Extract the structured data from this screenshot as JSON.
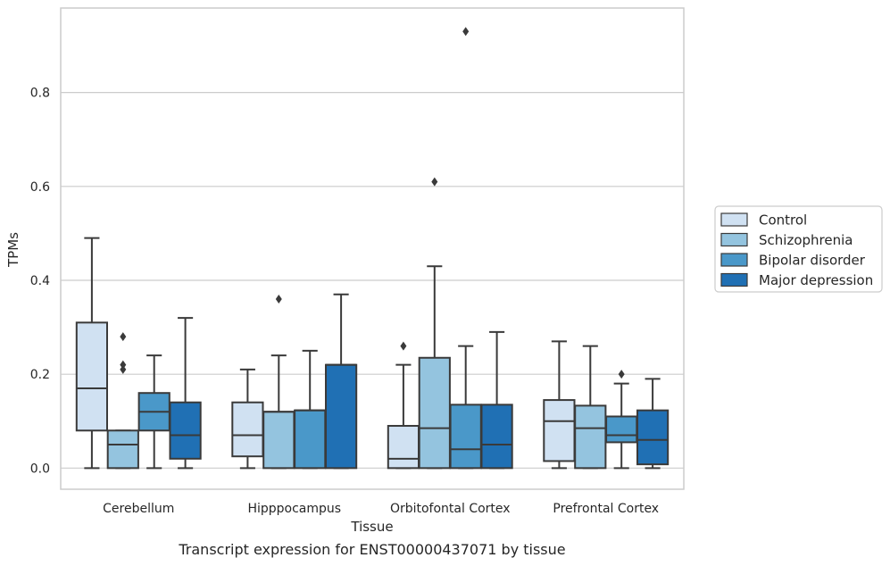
{
  "caption": "Transcript expression for ENST00000437071 by tissue",
  "chart_data": {
    "type": "box",
    "title": "",
    "xlabel": "Tissue",
    "ylabel": "TPMs",
    "ylim": [
      -0.045,
      0.98
    ],
    "yticks": [
      0.0,
      0.2,
      0.4,
      0.6,
      0.8
    ],
    "ytick_labels": [
      "0.0",
      "0.2",
      "0.4",
      "0.6",
      "0.8"
    ],
    "grid": "horizontal",
    "legend_position": "right",
    "categories": [
      "Cerebellum",
      "Hipppocampus",
      "Orbitofontal Cortex",
      "Prefrontal Cortex"
    ],
    "series": [
      {
        "name": "Control",
        "color": "#d0e1f2",
        "boxes": [
          {
            "whislo": 0.0,
            "q1": 0.08,
            "med": 0.17,
            "q3": 0.31,
            "whishi": 0.49,
            "fliers": []
          },
          {
            "whislo": 0.0,
            "q1": 0.025,
            "med": 0.07,
            "q3": 0.14,
            "whishi": 0.21,
            "fliers": []
          },
          {
            "whislo": 0.0,
            "q1": 0.0,
            "med": 0.02,
            "q3": 0.09,
            "whishi": 0.22,
            "fliers": [
              0.26
            ]
          },
          {
            "whislo": 0.0,
            "q1": 0.015,
            "med": 0.1,
            "q3": 0.145,
            "whishi": 0.27,
            "fliers": []
          }
        ]
      },
      {
        "name": "Schizophrenia",
        "color": "#94c4df",
        "boxes": [
          {
            "whislo": 0.0,
            "q1": 0.0,
            "med": 0.05,
            "q3": 0.08,
            "whishi": 0.08,
            "fliers": [
              0.21,
              0.22,
              0.28
            ]
          },
          {
            "whislo": 0.0,
            "q1": 0.0,
            "med": 0.12,
            "q3": 0.12,
            "whishi": 0.24,
            "fliers": [
              0.36
            ]
          },
          {
            "whislo": 0.0,
            "q1": 0.0,
            "med": 0.085,
            "q3": 0.235,
            "whishi": 0.43,
            "fliers": [
              0.61
            ]
          },
          {
            "whislo": 0.0,
            "q1": 0.0,
            "med": 0.085,
            "q3": 0.133,
            "whishi": 0.26,
            "fliers": []
          }
        ]
      },
      {
        "name": "Bipolar disorder",
        "color": "#4a98c9",
        "boxes": [
          {
            "whislo": 0.0,
            "q1": 0.08,
            "med": 0.12,
            "q3": 0.16,
            "whishi": 0.24,
            "fliers": []
          },
          {
            "whislo": 0.0,
            "q1": 0.0,
            "med": 0.123,
            "q3": 0.123,
            "whishi": 0.25,
            "fliers": []
          },
          {
            "whislo": 0.0,
            "q1": 0.0,
            "med": 0.04,
            "q3": 0.135,
            "whishi": 0.26,
            "fliers": [
              0.93
            ]
          },
          {
            "whislo": 0.0,
            "q1": 0.055,
            "med": 0.07,
            "q3": 0.11,
            "whishi": 0.18,
            "fliers": [
              0.2
            ]
          }
        ]
      },
      {
        "name": "Major depression",
        "color": "#2070b4",
        "boxes": [
          {
            "whislo": 0.0,
            "q1": 0.02,
            "med": 0.07,
            "q3": 0.14,
            "whishi": 0.32,
            "fliers": []
          },
          {
            "whislo": 0.0,
            "q1": 0.0,
            "med": 0.22,
            "q3": 0.22,
            "whishi": 0.37,
            "fliers": []
          },
          {
            "whislo": 0.0,
            "q1": 0.0,
            "med": 0.05,
            "q3": 0.135,
            "whishi": 0.29,
            "fliers": []
          },
          {
            "whislo": 0.0,
            "q1": 0.008,
            "med": 0.06,
            "q3": 0.123,
            "whishi": 0.19,
            "fliers": []
          }
        ]
      }
    ]
  }
}
